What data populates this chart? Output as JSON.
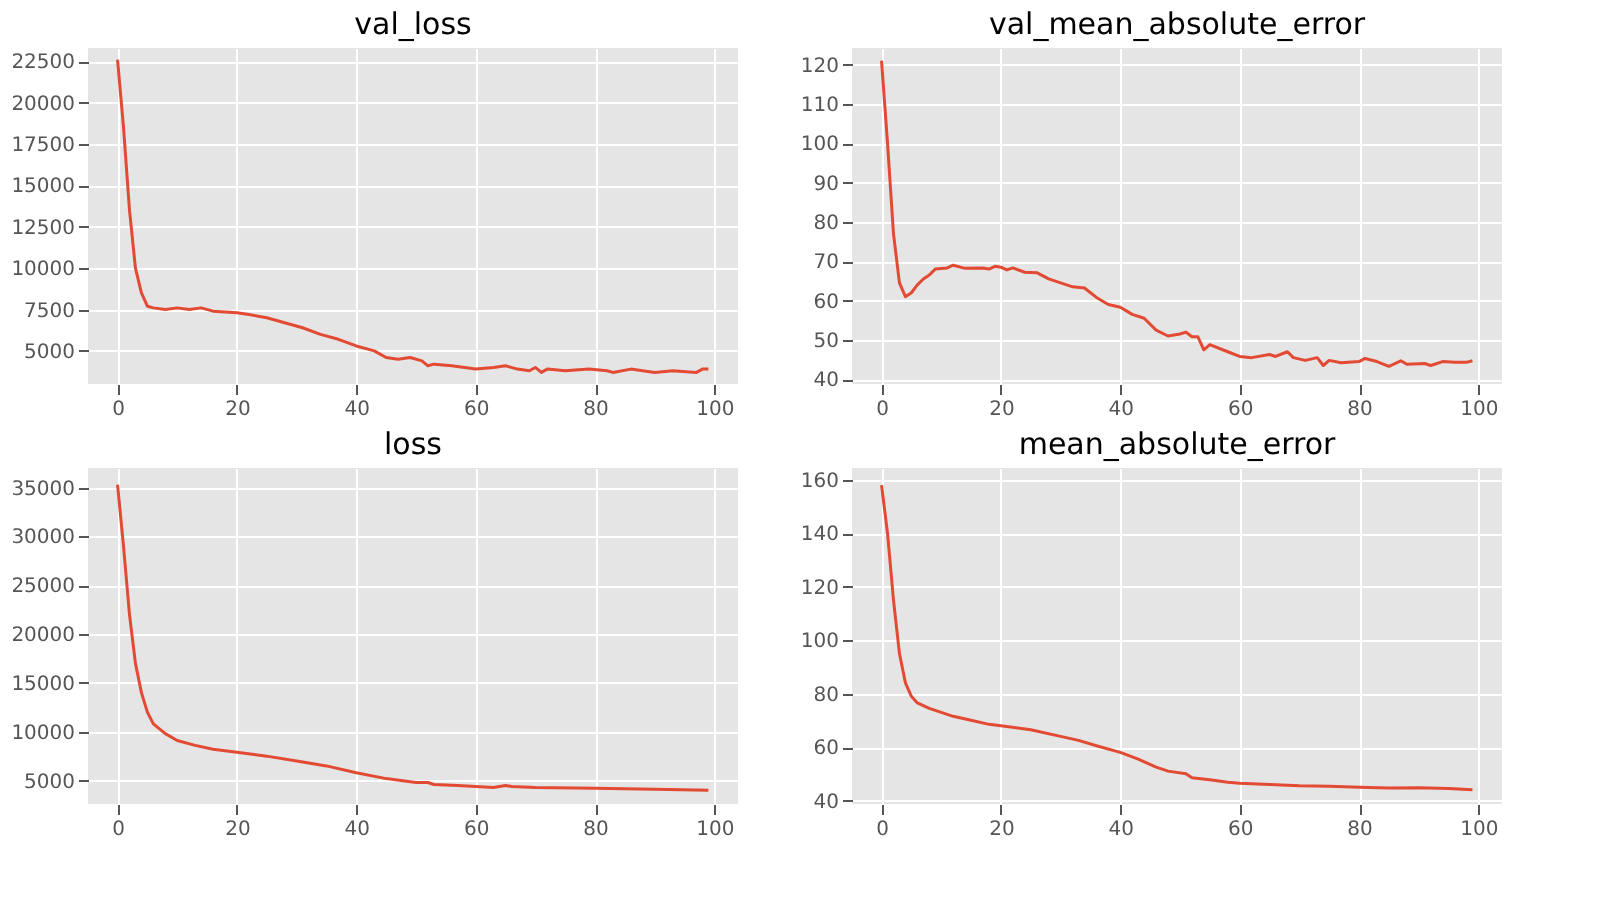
{
  "chart_data": [
    {
      "type": "line",
      "title": "val_loss",
      "xlim": [
        -4.95,
        103.95
      ],
      "xticks": [
        0,
        20,
        40,
        60,
        80,
        100
      ],
      "ylim": [
        3000,
        23300
      ],
      "yticks": [
        5000,
        7500,
        10000,
        12500,
        15000,
        17500,
        20000,
        22500
      ],
      "grid": true,
      "series": [
        {
          "color": "#e24a33",
          "x": [
            0,
            1,
            2,
            3,
            4,
            5,
            6,
            8,
            10,
            12,
            14,
            16,
            20,
            22,
            25,
            28,
            31,
            34,
            37,
            40,
            43,
            45,
            47,
            49,
            51,
            52,
            53,
            56,
            60,
            63,
            65,
            67,
            69,
            70,
            71,
            72,
            75,
            79,
            82,
            83,
            86,
            90,
            93,
            97,
            98,
            99
          ],
          "values": [
            22600,
            18500,
            13500,
            10000,
            8500,
            7700,
            7600,
            7500,
            7600,
            7500,
            7600,
            7400,
            7300,
            7200,
            7000,
            6700,
            6400,
            6000,
            5700,
            5300,
            5000,
            4600,
            4500,
            4600,
            4400,
            4100,
            4200,
            4100,
            3900,
            4000,
            4100,
            3900,
            3800,
            4000,
            3700,
            3900,
            3800,
            3900,
            3800,
            3700,
            3900,
            3700,
            3800,
            3700,
            3900,
            3900
          ]
        }
      ]
    },
    {
      "type": "line",
      "title": "val_mean_absolute_error",
      "xlim": [
        -4.95,
        103.95
      ],
      "xticks": [
        0,
        20,
        40,
        60,
        80,
        100
      ],
      "ylim": [
        38.8,
        124.2
      ],
      "yticks": [
        40,
        50,
        60,
        70,
        80,
        90,
        100,
        110,
        120
      ],
      "grid": true,
      "series": [
        {
          "color": "#e24a33",
          "x": [
            0,
            1,
            2,
            3,
            4,
            5,
            6,
            7,
            8,
            9,
            11,
            12,
            14,
            17,
            18,
            19,
            20,
            21,
            22,
            24,
            26,
            28,
            30,
            32,
            34,
            36,
            38,
            40,
            42,
            44,
            46,
            48,
            50,
            51,
            52,
            53,
            54,
            55,
            58,
            60,
            62,
            65,
            66,
            68,
            69,
            71,
            73,
            74,
            75,
            77,
            80,
            81,
            83,
            85,
            87,
            88,
            91,
            92,
            94,
            96,
            98,
            99
          ],
          "values": [
            121,
            100,
            77,
            64.5,
            61,
            62,
            64,
            65.5,
            66.5,
            68,
            68.3,
            69,
            68.2,
            68.3,
            68,
            68.7,
            68.5,
            67.8,
            68.3,
            67.2,
            67.1,
            65.5,
            64.5,
            63.5,
            63.2,
            60.8,
            59,
            58.3,
            56.5,
            55.5,
            52.5,
            51,
            51.5,
            52,
            50.8,
            50.8,
            47.5,
            48.8,
            47,
            45.8,
            45.5,
            46.3,
            45.8,
            47,
            45.5,
            44.8,
            45.5,
            43.5,
            44.8,
            44.2,
            44.5,
            45.3,
            44.5,
            43.3,
            44.7,
            43.8,
            44,
            43.5,
            44.5,
            44.3,
            44.3,
            44.7
          ]
        }
      ]
    },
    {
      "type": "line",
      "title": "loss",
      "xlim": [
        -4.95,
        103.95
      ],
      "xticks": [
        0,
        20,
        40,
        60,
        80,
        100
      ],
      "ylim": [
        2600,
        37000
      ],
      "yticks": [
        5000,
        10000,
        15000,
        20000,
        25000,
        30000,
        35000
      ],
      "grid": true,
      "series": [
        {
          "color": "#e24a33",
          "x": [
            0,
            1,
            2,
            3,
            4,
            5,
            6,
            8,
            10,
            13,
            16,
            20,
            25,
            30,
            35,
            40,
            45,
            50,
            52,
            53,
            57,
            60,
            63,
            64,
            65,
            66,
            70,
            80,
            90,
            99
          ],
          "values": [
            35300,
            29000,
            22000,
            17000,
            14000,
            12000,
            10800,
            9800,
            9100,
            8600,
            8200,
            7900,
            7500,
            7000,
            6500,
            5800,
            5200,
            4800,
            4800,
            4600,
            4500,
            4400,
            4300,
            4400,
            4500,
            4400,
            4300,
            4200,
            4100,
            4000
          ]
        }
      ]
    },
    {
      "type": "line",
      "title": "mean_absolute_error",
      "xlim": [
        -4.95,
        103.95
      ],
      "xticks": [
        0,
        20,
        40,
        60,
        80,
        100
      ],
      "ylim": [
        38.7,
        164.4
      ],
      "yticks": [
        40,
        60,
        80,
        100,
        120,
        140,
        160
      ],
      "grid": true,
      "series": [
        {
          "color": "#e24a33",
          "x": [
            0,
            1,
            2,
            3,
            4,
            5,
            6,
            8,
            10,
            12,
            15,
            18,
            20,
            25,
            30,
            33,
            36,
            40,
            43,
            46,
            48,
            51,
            52,
            55,
            58,
            60,
            65,
            70,
            75,
            80,
            85,
            90,
            95,
            99
          ],
          "values": [
            158,
            140,
            115,
            95,
            84,
            79,
            76.5,
            74.5,
            73,
            71.5,
            70,
            68.5,
            68,
            66.5,
            64,
            62.5,
            60.5,
            58,
            55.5,
            52.5,
            51,
            50,
            48.5,
            47.8,
            46.8,
            46.5,
            46,
            45.5,
            45.3,
            45,
            44.7,
            44.8,
            44.5,
            44
          ]
        }
      ]
    }
  ]
}
